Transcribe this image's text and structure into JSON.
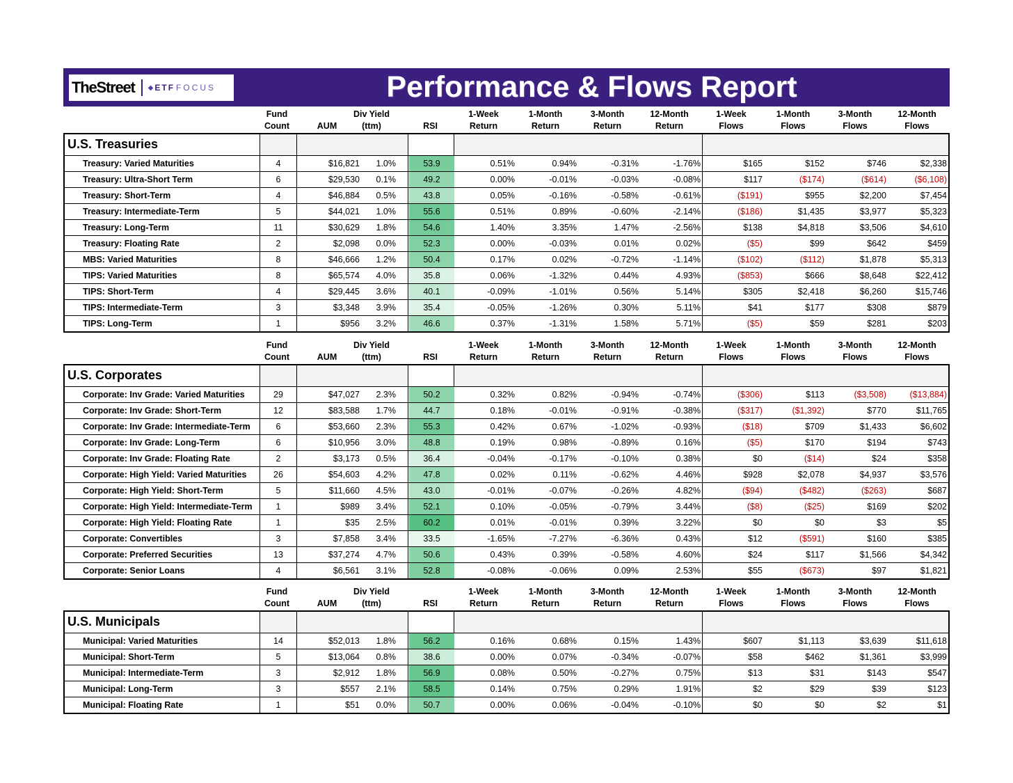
{
  "banner": {
    "logo_street": "TheStreet",
    "logo_etf": "ETF",
    "logo_focus": "FOCUS",
    "title": "Performance & Flows Report"
  },
  "columns": [
    "Fund\nCount",
    "AUM",
    "Div Yield\n(ttm)",
    "RSI",
    "1-Week\nReturn",
    "1-Month\nReturn",
    "3-Month\nReturn",
    "12-Month\nReturn",
    "1-Week\nFlows",
    "1-Month\nFlows",
    "3-Month\nFlows",
    "12-Month\nFlows"
  ],
  "sections": [
    {
      "title": "U.S. Treasuries",
      "rows": [
        [
          "Treasury: Varied Maturities",
          "4",
          "$16,821",
          "1.0%",
          "53.9",
          "0.51%",
          "0.94%",
          "-0.31%",
          "-1.76%",
          "$165",
          "$152",
          "$746",
          "$2,338"
        ],
        [
          "Treasury: Ultra-Short Term",
          "6",
          "$29,530",
          "0.1%",
          "49.2",
          "0.00%",
          "-0.01%",
          "-0.03%",
          "-0.08%",
          "$117",
          "($174)",
          "($614)",
          "($6,108)"
        ],
        [
          "Treasury: Short-Term",
          "4",
          "$46,884",
          "0.5%",
          "43.8",
          "0.05%",
          "-0.16%",
          "-0.58%",
          "-0.61%",
          "($191)",
          "$955",
          "$2,200",
          "$7,454"
        ],
        [
          "Treasury: Intermediate-Term",
          "5",
          "$44,021",
          "1.0%",
          "55.6",
          "0.51%",
          "0.89%",
          "-0.60%",
          "-2.14%",
          "($186)",
          "$1,435",
          "$3,977",
          "$5,323"
        ],
        [
          "Treasury: Long-Term",
          "11",
          "$30,629",
          "1.8%",
          "54.6",
          "1.40%",
          "3.35%",
          "1.47%",
          "-2.56%",
          "$138",
          "$4,818",
          "$3,506",
          "$4,610"
        ],
        [
          "Treasury: Floating Rate",
          "2",
          "$2,098",
          "0.0%",
          "52.3",
          "0.00%",
          "-0.03%",
          "0.01%",
          "0.02%",
          "($5)",
          "$99",
          "$642",
          "$459"
        ],
        [
          "MBS: Varied Maturities",
          "8",
          "$46,666",
          "1.2%",
          "50.4",
          "0.17%",
          "0.02%",
          "-0.72%",
          "-1.14%",
          "($102)",
          "($112)",
          "$1,878",
          "$5,313"
        ],
        [
          "TIPS: Varied Maturities",
          "8",
          "$65,574",
          "4.0%",
          "35.8",
          "0.06%",
          "-1.32%",
          "0.44%",
          "4.93%",
          "($853)",
          "$666",
          "$8,648",
          "$22,412"
        ],
        [
          "TIPS: Short-Term",
          "4",
          "$29,445",
          "3.6%",
          "40.1",
          "-0.09%",
          "-1.01%",
          "0.56%",
          "5.14%",
          "$305",
          "$2,418",
          "$6,260",
          "$15,746"
        ],
        [
          "TIPS: Intermediate-Term",
          "3",
          "$3,348",
          "3.9%",
          "35.4",
          "-0.05%",
          "-1.26%",
          "0.30%",
          "5.11%",
          "$41",
          "$177",
          "$308",
          "$879"
        ],
        [
          "TIPS: Long-Term",
          "1",
          "$956",
          "3.2%",
          "46.6",
          "0.37%",
          "-1.31%",
          "1.58%",
          "5.71%",
          "($5)",
          "$59",
          "$281",
          "$203"
        ]
      ]
    },
    {
      "title": "U.S. Corporates",
      "rows": [
        [
          "Corporate: Inv Grade: Varied Maturities",
          "29",
          "$47,027",
          "2.3%",
          "50.2",
          "0.32%",
          "0.82%",
          "-0.94%",
          "-0.74%",
          "($306)",
          "$113",
          "($3,508)",
          "($13,884)"
        ],
        [
          "Corporate: Inv Grade: Short-Term",
          "12",
          "$83,588",
          "1.7%",
          "44.7",
          "0.18%",
          "-0.01%",
          "-0.91%",
          "-0.38%",
          "($317)",
          "($1,392)",
          "$770",
          "$11,765"
        ],
        [
          "Corporate: Inv Grade: Intermediate-Term",
          "6",
          "$53,660",
          "2.3%",
          "55.3",
          "0.42%",
          "0.67%",
          "-1.02%",
          "-0.93%",
          "($18)",
          "$709",
          "$1,433",
          "$6,602"
        ],
        [
          "Corporate: Inv Grade: Long-Term",
          "6",
          "$10,956",
          "3.0%",
          "48.8",
          "0.19%",
          "0.98%",
          "-0.89%",
          "0.16%",
          "($5)",
          "$170",
          "$194",
          "$743"
        ],
        [
          "Corporate: Inv Grade: Floating Rate",
          "2",
          "$3,173",
          "0.5%",
          "36.4",
          "-0.04%",
          "-0.17%",
          "-0.10%",
          "0.38%",
          "$0",
          "($14)",
          "$24",
          "$358"
        ],
        [
          "Corporate: High Yield: Varied Maturities",
          "26",
          "$54,603",
          "4.2%",
          "47.8",
          "0.02%",
          "0.11%",
          "-0.62%",
          "4.46%",
          "$928",
          "$2,078",
          "$4,937",
          "$3,576"
        ],
        [
          "Corporate: High Yield: Short-Term",
          "5",
          "$11,660",
          "4.5%",
          "43.0",
          "-0.01%",
          "-0.07%",
          "-0.26%",
          "4.82%",
          "($94)",
          "($482)",
          "($263)",
          "$687"
        ],
        [
          "Corporate: High Yield: Intermediate-Term",
          "1",
          "$989",
          "3.4%",
          "52.1",
          "0.10%",
          "-0.05%",
          "-0.79%",
          "3.44%",
          "($8)",
          "($25)",
          "$169",
          "$202"
        ],
        [
          "Corporate: High Yield: Floating Rate",
          "1",
          "$35",
          "2.5%",
          "60.2",
          "0.01%",
          "-0.01%",
          "0.39%",
          "3.22%",
          "$0",
          "$0",
          "$3",
          "$5"
        ],
        [
          "Corporate: Convertibles",
          "3",
          "$7,858",
          "3.4%",
          "33.5",
          "-1.65%",
          "-7.27%",
          "-6.36%",
          "0.43%",
          "$12",
          "($591)",
          "$160",
          "$385"
        ],
        [
          "Corporate: Preferred Securities",
          "13",
          "$37,274",
          "4.7%",
          "50.6",
          "0.43%",
          "0.39%",
          "-0.58%",
          "4.60%",
          "$24",
          "$117",
          "$1,566",
          "$4,342"
        ],
        [
          "Corporate: Senior Loans",
          "4",
          "$6,561",
          "3.1%",
          "52.8",
          "-0.08%",
          "-0.06%",
          "0.09%",
          "2.53%",
          "$55",
          "($673)",
          "$97",
          "$1,821"
        ]
      ]
    },
    {
      "title": "U.S. Municipals",
      "rows": [
        [
          "Municipal: Varied Maturities",
          "14",
          "$52,013",
          "1.8%",
          "56.2",
          "0.16%",
          "0.68%",
          "0.15%",
          "1.43%",
          "$607",
          "$1,113",
          "$3,639",
          "$11,618"
        ],
        [
          "Municipal: Short-Term",
          "5",
          "$13,064",
          "0.8%",
          "38.6",
          "0.00%",
          "0.07%",
          "-0.34%",
          "-0.07%",
          "$58",
          "$462",
          "$1,361",
          "$3,999"
        ],
        [
          "Municipal: Intermediate-Term",
          "3",
          "$2,912",
          "1.8%",
          "56.9",
          "0.08%",
          "0.50%",
          "-0.27%",
          "0.75%",
          "$13",
          "$31",
          "$143",
          "$547"
        ],
        [
          "Municipal: Long-Term",
          "3",
          "$557",
          "2.1%",
          "58.5",
          "0.14%",
          "0.75%",
          "0.29%",
          "1.91%",
          "$2",
          "$29",
          "$39",
          "$123"
        ],
        [
          "Municipal: Floating Rate",
          "1",
          "$51",
          "0.0%",
          "50.7",
          "0.00%",
          "0.06%",
          "-0.04%",
          "-0.10%",
          "$0",
          "$0",
          "$2",
          "$1"
        ]
      ]
    }
  ]
}
